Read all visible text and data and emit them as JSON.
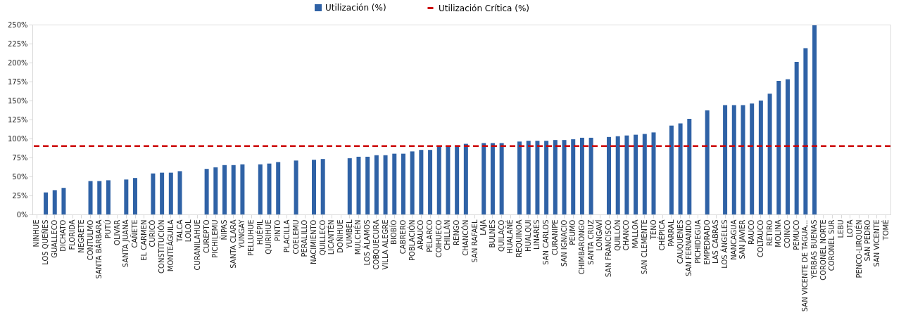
{
  "chart_data": {
    "type": "bar",
    "categories": [
      "NINHUE",
      "LOS QUEÑES",
      "GUALLECO",
      "DICHATO",
      "FLORIDA",
      "NEGRETE",
      "CONTULMO",
      "SANTA BÁRBARA",
      "PUTÚ",
      "OLIVAR",
      "SANTA JUANA",
      "CAÑETE",
      "EL CARMEN",
      "CURICÓ",
      "CONSTITUCIÓN",
      "MONTEÁGUILA",
      "TALCA",
      "LOLOL",
      "CURANILAHUE",
      "CUREPTO",
      "PICHILEMU",
      "ÑIPAS",
      "SANTA CLARA",
      "YUNGAY",
      "PELLUHUE",
      "HUÉPIL",
      "QUIRIHUE",
      "PINTO",
      "PLACILLA",
      "COELEMU",
      "PERALILLO",
      "NACIMIENTO",
      "QUILLECO",
      "LICANTÉN",
      "DOÑIHUE",
      "YUMBEL",
      "MULCHÉN",
      "LOS ÁLAMOS",
      "COBQUECURA",
      "VILLA ALEGRE",
      "BIOBÍO",
      "CABRERO",
      "POBLACIÓN",
      "ARAUCO",
      "PELARCO",
      "COIHUECO",
      "CHILLÁN",
      "RENGO",
      "CHANCÓN",
      "SAN RAFAEL",
      "LAJA",
      "BULNES",
      "QUILACO",
      "HUALAÑÉ",
      "REQUINOA",
      "HUALQUI",
      "LINARES",
      "SAN CARLOS",
      "CURANIPE",
      "SAN IGNACIO",
      "PEUMO",
      "CHIMBARONGO",
      "SANTA CRUZ",
      "LONGAVÍ",
      "SAN FRANCISCO",
      "QUILLÓN",
      "CHANCO",
      "MALLOA",
      "SAN CLEMENTE",
      "TENO",
      "CHÉPICA",
      "PARRAL",
      "CAUQUENES",
      "SAN FERNANDO",
      "PICHIDEGUA",
      "EMPEDRADO",
      "LAS CABRAS",
      "LOS ÁNGELES",
      "NANCAGUA",
      "SAN JAVIER",
      "RAUCO",
      "COLTAUCO",
      "RETIRO",
      "MOLINA",
      "COINCO",
      "PEMUCO",
      "SAN VICENTE DE TAGUA...",
      "YERBAS BUENAS",
      "CORONEL NORTE",
      "CORONEL SUR",
      "LEBU",
      "LOTA",
      "PENCO-LIRQUÉN",
      "SAN PEDRO",
      "SAN VICENTE",
      "TOMÉ"
    ],
    "series": [
      {
        "name": "Utilización (%)",
        "color": "#2f62a6",
        "values": [
          null,
          29,
          32,
          35,
          null,
          null,
          44,
          44,
          45,
          null,
          46,
          48,
          null,
          54,
          55,
          55,
          57,
          null,
          null,
          60,
          62,
          65,
          65,
          66,
          null,
          66,
          67,
          69,
          null,
          71,
          null,
          72,
          73,
          null,
          null,
          74,
          76,
          76,
          78,
          78,
          80,
          80,
          83,
          85,
          85,
          89,
          89,
          91,
          93,
          null,
          94,
          94,
          94,
          null,
          96,
          97,
          97,
          97,
          98,
          98,
          99,
          101,
          101,
          null,
          102,
          103,
          104,
          105,
          106,
          108,
          null,
          117,
          120,
          126,
          null,
          137,
          null,
          144,
          144,
          144,
          146,
          150,
          159,
          176,
          178,
          201,
          219,
          249,
          null,
          null,
          null,
          null,
          null,
          null,
          null,
          null
        ]
      }
    ],
    "ref_lines": [
      {
        "axis": "y",
        "value": 90,
        "label": "Utilización Crítica (%)",
        "color": "#cc0000",
        "line_style": "dashed"
      }
    ],
    "ylim": [
      0,
      250
    ],
    "yticks": [
      {
        "value": 0,
        "label": "0%"
      },
      {
        "value": 25,
        "label": "25%"
      },
      {
        "value": 50,
        "label": "50%"
      },
      {
        "value": 75,
        "label": "75%"
      },
      {
        "value": 100,
        "label": "100%"
      },
      {
        "value": 125,
        "label": "125%"
      },
      {
        "value": 150,
        "label": "150%"
      },
      {
        "value": 175,
        "label": "175%"
      },
      {
        "value": 200,
        "label": "200%"
      },
      {
        "value": 225,
        "label": "225%"
      },
      {
        "value": 250,
        "label": "250%"
      }
    ],
    "grid": false,
    "legend": "top"
  }
}
